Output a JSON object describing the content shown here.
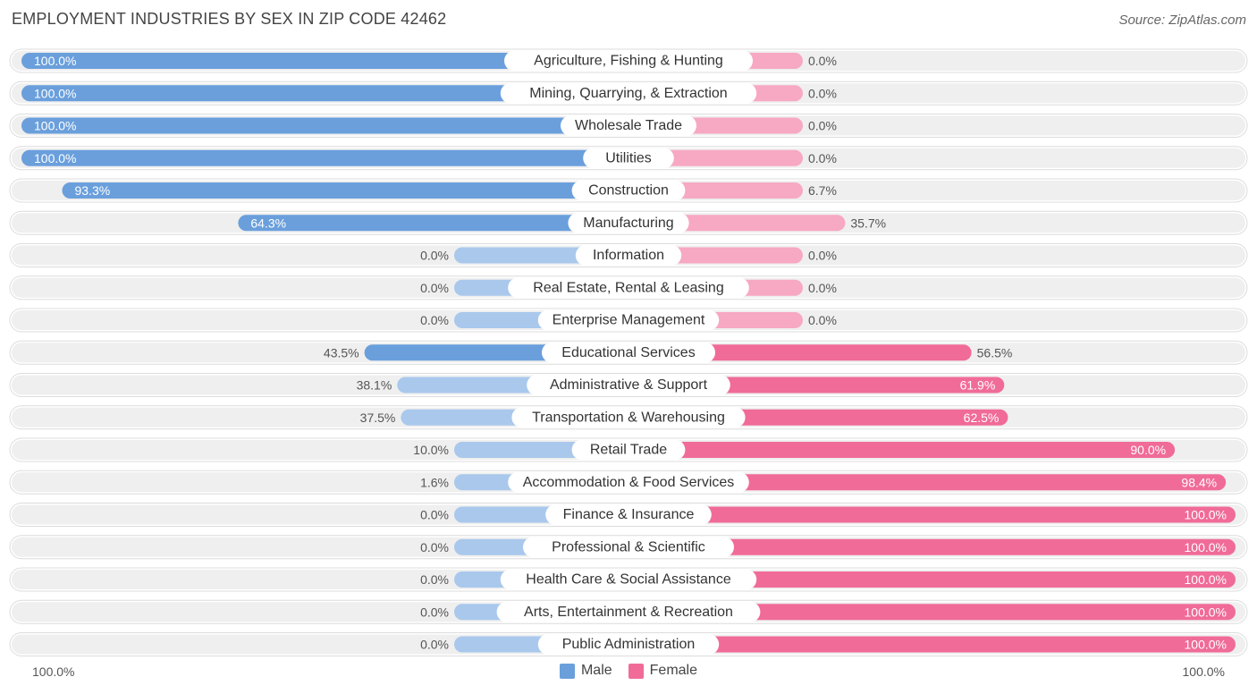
{
  "header": {
    "title": "EMPLOYMENT INDUSTRIES BY SEX IN ZIP CODE 42462",
    "source": "Source: ZipAtlas.com"
  },
  "colors": {
    "male_strong": "#6a9fdc",
    "male_light": "#a9c8ec",
    "female_strong": "#f06b98",
    "female_light": "#f7a8c2",
    "row_bg": "#efefef"
  },
  "legend": {
    "male": "Male",
    "female": "Female"
  },
  "axis": {
    "left_label": "100.0%",
    "right_label": "100.0%"
  },
  "chart_data": {
    "type": "bar",
    "orientation": "horizontal-diverging",
    "title": "EMPLOYMENT INDUSTRIES BY SEX IN ZIP CODE 42462",
    "xlim": [
      -100,
      100
    ],
    "categories": [
      "Agriculture, Fishing & Hunting",
      "Mining, Quarrying, & Extraction",
      "Wholesale Trade",
      "Utilities",
      "Construction",
      "Manufacturing",
      "Information",
      "Real Estate, Rental & Leasing",
      "Enterprise Management",
      "Educational Services",
      "Administrative & Support",
      "Transportation & Warehousing",
      "Retail Trade",
      "Accommodation & Food Services",
      "Finance & Insurance",
      "Professional & Scientific",
      "Health Care & Social Assistance",
      "Arts, Entertainment & Recreation",
      "Public Administration"
    ],
    "series": [
      {
        "name": "Male",
        "values": [
          100.0,
          100.0,
          100.0,
          100.0,
          93.3,
          64.3,
          0.0,
          0.0,
          0.0,
          43.5,
          38.1,
          37.5,
          10.0,
          1.6,
          0.0,
          0.0,
          0.0,
          0.0,
          0.0
        ],
        "labels": [
          "100.0%",
          "100.0%",
          "100.0%",
          "100.0%",
          "93.3%",
          "64.3%",
          "0.0%",
          "0.0%",
          "0.0%",
          "43.5%",
          "38.1%",
          "37.5%",
          "10.0%",
          "1.6%",
          "0.0%",
          "0.0%",
          "0.0%",
          "0.0%",
          "0.0%"
        ]
      },
      {
        "name": "Female",
        "values": [
          0.0,
          0.0,
          0.0,
          0.0,
          6.7,
          35.7,
          0.0,
          0.0,
          0.0,
          56.5,
          61.9,
          62.5,
          90.0,
          98.4,
          100.0,
          100.0,
          100.0,
          100.0,
          100.0
        ],
        "labels": [
          "0.0%",
          "0.0%",
          "0.0%",
          "0.0%",
          "6.7%",
          "35.7%",
          "0.0%",
          "0.0%",
          "0.0%",
          "56.5%",
          "61.9%",
          "62.5%",
          "90.0%",
          "98.4%",
          "100.0%",
          "100.0%",
          "100.0%",
          "100.0%",
          "100.0%"
        ]
      }
    ],
    "legend_position": "bottom-center"
  }
}
